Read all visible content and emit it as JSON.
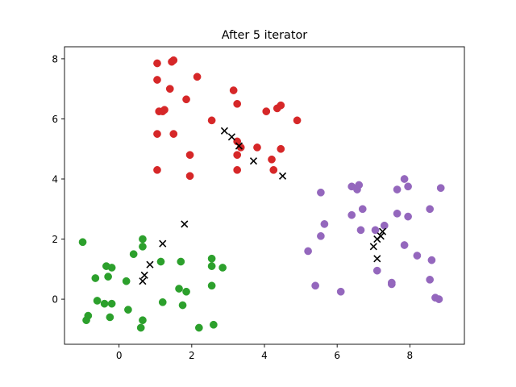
{
  "chart_data": {
    "type": "scatter",
    "title": "After 5 iterator",
    "xlabel": "",
    "ylabel": "",
    "xlim": [
      -1.5,
      9.5
    ],
    "ylim": [
      -1.5,
      8.4
    ],
    "xticks": [
      0,
      2,
      4,
      6,
      8
    ],
    "yticks": [
      0,
      2,
      4,
      6,
      8
    ],
    "grid": false,
    "series": [
      {
        "color": "#d62728",
        "marker": "circle",
        "points": [
          [
            1.05,
            7.85
          ],
          [
            1.05,
            7.3
          ],
          [
            1.45,
            7.9
          ],
          [
            1.5,
            7.95
          ],
          [
            2.15,
            7.4
          ],
          [
            1.4,
            7.0
          ],
          [
            1.85,
            6.65
          ],
          [
            1.1,
            6.25
          ],
          [
            1.2,
            6.25
          ],
          [
            1.25,
            6.3
          ],
          [
            1.05,
            5.5
          ],
          [
            1.5,
            5.5
          ],
          [
            1.95,
            4.8
          ],
          [
            1.05,
            4.3
          ],
          [
            1.95,
            4.1
          ],
          [
            3.15,
            6.95
          ],
          [
            3.25,
            6.5
          ],
          [
            2.55,
            5.95
          ],
          [
            3.25,
            5.25
          ],
          [
            3.35,
            5.05
          ],
          [
            3.25,
            4.8
          ],
          [
            3.25,
            4.3
          ],
          [
            3.8,
            5.05
          ],
          [
            4.05,
            6.25
          ],
          [
            4.35,
            6.35
          ],
          [
            4.45,
            6.45
          ],
          [
            4.9,
            5.95
          ],
          [
            4.45,
            5.0
          ],
          [
            4.2,
            4.65
          ],
          [
            4.25,
            4.3
          ]
        ]
      },
      {
        "color": "#2ca02c",
        "marker": "circle",
        "points": [
          [
            -1.0,
            1.9
          ],
          [
            -0.65,
            0.7
          ],
          [
            -0.35,
            1.1
          ],
          [
            -0.2,
            1.05
          ],
          [
            -0.3,
            0.75
          ],
          [
            0.4,
            1.5
          ],
          [
            0.65,
            2.0
          ],
          [
            0.65,
            1.75
          ],
          [
            0.2,
            0.6
          ],
          [
            -0.6,
            -0.05
          ],
          [
            -0.4,
            -0.15
          ],
          [
            -0.2,
            -0.15
          ],
          [
            -0.85,
            -0.55
          ],
          [
            -0.9,
            -0.7
          ],
          [
            -0.25,
            -0.6
          ],
          [
            0.25,
            -0.35
          ],
          [
            0.65,
            -0.7
          ],
          [
            0.6,
            -0.95
          ],
          [
            1.2,
            -0.1
          ],
          [
            1.15,
            1.25
          ],
          [
            1.7,
            1.25
          ],
          [
            1.65,
            0.35
          ],
          [
            1.85,
            0.25
          ],
          [
            1.75,
            -0.2
          ],
          [
            2.2,
            -0.95
          ],
          [
            2.55,
            1.35
          ],
          [
            2.55,
            1.1
          ],
          [
            2.85,
            1.05
          ],
          [
            2.55,
            0.45
          ],
          [
            2.6,
            -0.85
          ]
        ]
      },
      {
        "color": "#9467bd",
        "marker": "circle",
        "points": [
          [
            5.55,
            3.55
          ],
          [
            5.65,
            2.5
          ],
          [
            5.55,
            2.1
          ],
          [
            5.2,
            1.6
          ],
          [
            5.4,
            0.45
          ],
          [
            6.1,
            0.25
          ],
          [
            6.4,
            3.75
          ],
          [
            6.55,
            3.65
          ],
          [
            6.6,
            3.8
          ],
          [
            6.4,
            2.8
          ],
          [
            6.7,
            3.0
          ],
          [
            6.65,
            2.3
          ],
          [
            7.05,
            2.3
          ],
          [
            7.3,
            2.45
          ],
          [
            7.1,
            0.95
          ],
          [
            7.5,
            0.5
          ],
          [
            7.5,
            0.55
          ],
          [
            7.65,
            3.65
          ],
          [
            7.65,
            2.85
          ],
          [
            7.85,
            4.0
          ],
          [
            7.95,
            3.75
          ],
          [
            7.95,
            2.75
          ],
          [
            7.85,
            1.8
          ],
          [
            8.2,
            1.45
          ],
          [
            8.55,
            3.0
          ],
          [
            8.6,
            1.3
          ],
          [
            8.55,
            0.65
          ],
          [
            8.7,
            0.05
          ],
          [
            8.8,
            0.0
          ],
          [
            8.85,
            3.7
          ]
        ]
      },
      {
        "color": "#000000",
        "marker": "x",
        "points": [
          [
            2.9,
            5.6
          ],
          [
            3.1,
            5.4
          ],
          [
            3.3,
            5.1
          ],
          [
            3.7,
            4.6
          ],
          [
            4.5,
            4.1
          ],
          [
            1.8,
            2.5
          ],
          [
            1.2,
            1.85
          ],
          [
            0.85,
            1.15
          ],
          [
            0.7,
            0.8
          ],
          [
            0.65,
            0.6
          ],
          [
            7.25,
            2.25
          ],
          [
            7.2,
            2.1
          ],
          [
            7.1,
            2.0
          ],
          [
            7.0,
            1.75
          ],
          [
            7.1,
            1.35
          ]
        ]
      }
    ]
  }
}
